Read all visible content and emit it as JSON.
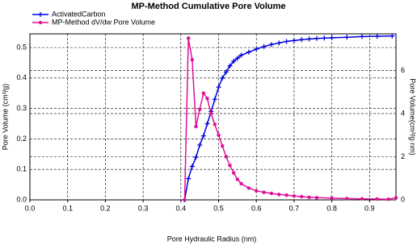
{
  "chart_data": {
    "type": "line",
    "title": "MP-Method Cumulative Pore Volume",
    "x_label": "Pore Hydraulic Radius (nm)",
    "y_label": "Pore Volume (cm³/g)",
    "y2_label": "Pore Volume(cm³/g·nm)",
    "xlim": [
      0,
      0.97
    ],
    "xticks": [
      {
        "value": 0,
        "label": "0.0"
      },
      0.1,
      0.2,
      0.3,
      0.4,
      0.5,
      0.6,
      0.7,
      0.8,
      0.9
    ],
    "ylim": [
      0,
      0.545
    ],
    "yticks": [
      {
        "value": 0,
        "label": "0.0"
      },
      0.1,
      0.2,
      0.3,
      0.4,
      0.5
    ],
    "y2lim": [
      0,
      7.7
    ],
    "y2ticks": [
      0,
      2,
      4,
      6
    ],
    "grid": true,
    "legend": "top-left",
    "series": [
      {
        "name": "ActivatedCarbon",
        "color": "#0000e0",
        "marker": "plus",
        "x": [
          0.41,
          0.42,
          0.43,
          0.44,
          0.45,
          0.46,
          0.47,
          0.48,
          0.49,
          0.5,
          0.51,
          0.52,
          0.53,
          0.54,
          0.55,
          0.56,
          0.58,
          0.6,
          0.62,
          0.64,
          0.66,
          0.68,
          0.7,
          0.72,
          0.74,
          0.76,
          0.78,
          0.8,
          0.84,
          0.88,
          0.92,
          0.96
        ],
        "values": [
          0,
          0.07,
          0.11,
          0.14,
          0.18,
          0.21,
          0.25,
          0.29,
          0.33,
          0.37,
          0.4,
          0.42,
          0.44,
          0.455,
          0.465,
          0.475,
          0.485,
          0.495,
          0.503,
          0.51,
          0.515,
          0.52,
          0.523,
          0.526,
          0.528,
          0.53,
          0.531,
          0.532,
          0.534,
          0.536,
          0.537,
          0.538
        ]
      },
      {
        "name": "MP-Method dV/dw Pore Volume",
        "color": "#e0109a",
        "marker": "circle",
        "axis": "y2",
        "x": [
          0.41,
          0.42,
          0.43,
          0.44,
          0.45,
          0.46,
          0.47,
          0.48,
          0.49,
          0.5,
          0.51,
          0.52,
          0.53,
          0.54,
          0.55,
          0.56,
          0.58,
          0.6,
          0.62,
          0.64,
          0.66,
          0.68,
          0.7,
          0.72,
          0.74,
          0.76,
          0.8,
          0.84,
          0.88,
          0.92,
          0.95,
          0.97
        ],
        "values": [
          0,
          7.5,
          6.5,
          3.4,
          4.2,
          4.95,
          4.7,
          4.0,
          3.5,
          3.0,
          2.5,
          2.0,
          1.6,
          1.25,
          0.95,
          0.75,
          0.55,
          0.42,
          0.35,
          0.3,
          0.25,
          0.22,
          0.18,
          0.15,
          0.12,
          0.1,
          0.08,
          0.06,
          0.05,
          0.04,
          0.03,
          0.1
        ]
      }
    ]
  }
}
